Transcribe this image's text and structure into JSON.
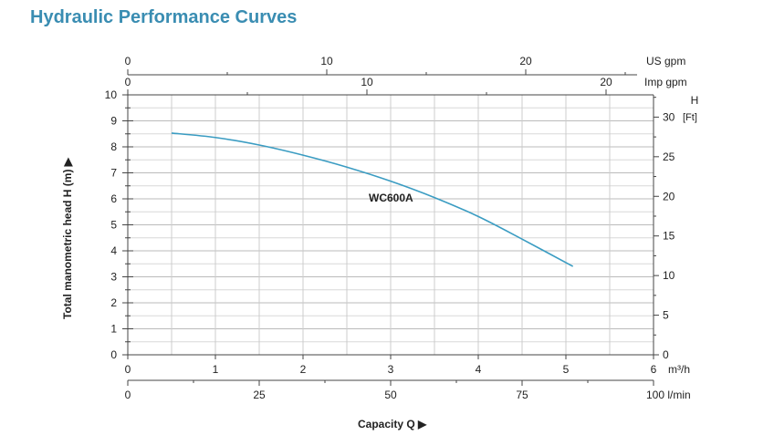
{
  "chart_data": {
    "type": "line",
    "title": "Hydraulic Performance Curves",
    "xlabel": "Capacity Q",
    "ylabel": "Total manometric head H (m)",
    "xlim": [
      0,
      6
    ],
    "ylim": [
      0,
      10
    ],
    "grid": true,
    "x_unit": "m³/h",
    "x_ticks": [
      "0",
      "1",
      "2",
      "3",
      "4",
      "5",
      "6"
    ],
    "y_ticks": [
      "0",
      "1",
      "2",
      "3",
      "4",
      "5",
      "6",
      "7",
      "8",
      "9",
      "10"
    ],
    "secondary_axes": {
      "lmin": {
        "unit": "100 l/min",
        "ticks": [
          "0",
          "25",
          "50",
          "75"
        ],
        "max": 100
      },
      "us_gpm": {
        "unit": "US  gpm",
        "ticks": [
          "0",
          "10",
          "20"
        ]
      },
      "imp_gpm": {
        "unit": "Imp gpm",
        "ticks": [
          "0",
          "10",
          "20"
        ]
      },
      "ft": {
        "unit_top": "H",
        "unit": "[Ft]",
        "ticks": [
          "0",
          "5",
          "10",
          "15",
          "20",
          "25",
          "30"
        ]
      }
    },
    "series": [
      {
        "name": "WC600A",
        "color": "#3a9cc2",
        "x": [
          0.5,
          1.0,
          1.5,
          2.0,
          2.5,
          3.0,
          3.5,
          4.0,
          4.5,
          5.08
        ],
        "y": [
          8.53,
          8.36,
          8.07,
          7.68,
          7.22,
          6.68,
          6.05,
          5.32,
          4.45,
          3.4
        ]
      }
    ],
    "title_color": "#3a8db2"
  }
}
